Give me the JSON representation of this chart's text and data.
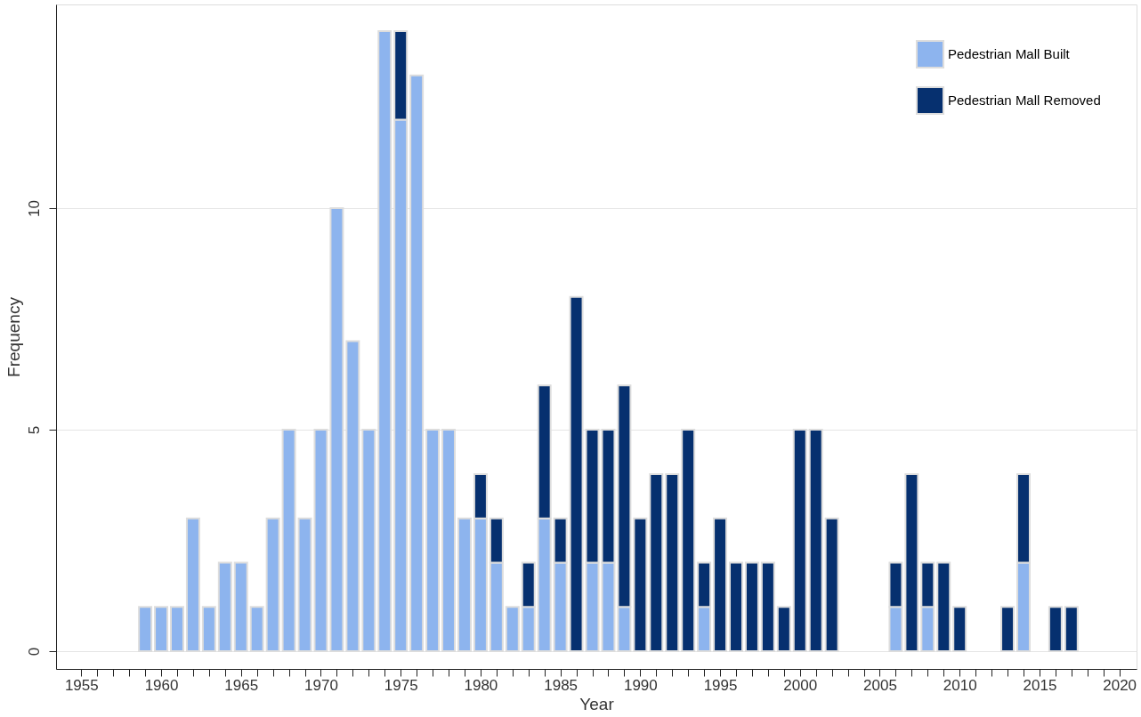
{
  "chart_data": {
    "type": "bar",
    "stacked": true,
    "xlabel": "Year",
    "ylabel": "Frequency",
    "x": [
      1959,
      1960,
      1961,
      1962,
      1963,
      1964,
      1965,
      1966,
      1967,
      1968,
      1969,
      1970,
      1971,
      1972,
      1973,
      1974,
      1975,
      1976,
      1977,
      1978,
      1979,
      1980,
      1981,
      1982,
      1983,
      1984,
      1985,
      1986,
      1987,
      1988,
      1989,
      1990,
      1991,
      1992,
      1993,
      1994,
      1995,
      1996,
      1997,
      1998,
      1999,
      2000,
      2001,
      2002,
      2006,
      2007,
      2008,
      2009,
      2010,
      2013,
      2014,
      2016,
      2017
    ],
    "series": [
      {
        "name": "Pedestrian Mall Built",
        "color": "#8db4ee",
        "values": [
          1,
          1,
          1,
          3,
          1,
          2,
          2,
          1,
          3,
          5,
          3,
          5,
          10,
          7,
          5,
          14,
          12,
          13,
          5,
          5,
          3,
          3,
          2,
          1,
          1,
          3,
          2,
          null,
          2,
          2,
          1,
          null,
          null,
          null,
          null,
          1,
          null,
          null,
          null,
          null,
          null,
          null,
          null,
          null,
          1,
          null,
          1,
          null,
          null,
          null,
          2,
          null,
          null
        ]
      },
      {
        "name": "Pedestrian Mall Removed",
        "color": "#06306f",
        "values": [
          null,
          null,
          null,
          null,
          null,
          null,
          null,
          null,
          null,
          null,
          null,
          null,
          null,
          null,
          null,
          null,
          2,
          null,
          null,
          null,
          null,
          1,
          1,
          null,
          1,
          3,
          1,
          8,
          3,
          3,
          5,
          3,
          4,
          4,
          5,
          1,
          3,
          2,
          2,
          2,
          1,
          5,
          5,
          3,
          1,
          4,
          1,
          2,
          1,
          1,
          2,
          1,
          1
        ]
      }
    ],
    "xlim": [
      1953.7,
      2020.8
    ],
    "xticks": [
      1955,
      {
        "value": 1956,
        "label": null
      },
      {
        "value": 1957,
        "label": null
      },
      {
        "value": 1958,
        "label": null
      },
      {
        "value": 1959,
        "label": null
      },
      1960,
      {
        "value": 1961,
        "label": null
      },
      {
        "value": 1962,
        "label": null
      },
      {
        "value": 1963,
        "label": null
      },
      {
        "value": 1964,
        "label": null
      },
      1965,
      {
        "value": 1966,
        "label": null
      },
      {
        "value": 1967,
        "label": null
      },
      {
        "value": 1968,
        "label": null
      },
      {
        "value": 1969,
        "label": null
      },
      1970,
      {
        "value": 1971,
        "label": null
      },
      {
        "value": 1972,
        "label": null
      },
      {
        "value": 1973,
        "label": null
      },
      {
        "value": 1974,
        "label": null
      },
      1975,
      {
        "value": 1976,
        "label": null
      },
      {
        "value": 1977,
        "label": null
      },
      {
        "value": 1978,
        "label": null
      },
      {
        "value": 1979,
        "label": null
      },
      1980,
      {
        "value": 1981,
        "label": null
      },
      {
        "value": 1982,
        "label": null
      },
      {
        "value": 1983,
        "label": null
      },
      {
        "value": 1984,
        "label": null
      },
      1985,
      {
        "value": 1986,
        "label": null
      },
      {
        "value": 1987,
        "label": null
      },
      {
        "value": 1988,
        "label": null
      },
      {
        "value": 1989,
        "label": null
      },
      1990,
      {
        "value": 1991,
        "label": null
      },
      {
        "value": 1992,
        "label": null
      },
      {
        "value": 1993,
        "label": null
      },
      {
        "value": 1994,
        "label": null
      },
      1995,
      {
        "value": 1996,
        "label": null
      },
      {
        "value": 1997,
        "label": null
      },
      {
        "value": 1998,
        "label": null
      },
      {
        "value": 1999,
        "label": null
      },
      2000,
      {
        "value": 2001,
        "label": null
      },
      {
        "value": 2002,
        "label": null
      },
      {
        "value": 2003,
        "label": null
      },
      {
        "value": 2004,
        "label": null
      },
      2005,
      {
        "value": 2006,
        "label": null
      },
      {
        "value": 2007,
        "label": null
      },
      {
        "value": 2008,
        "label": null
      },
      {
        "value": 2009,
        "label": null
      },
      2010,
      {
        "value": 2011,
        "label": null
      },
      {
        "value": 2012,
        "label": null
      },
      {
        "value": 2013,
        "label": null
      },
      {
        "value": 2014,
        "label": null
      },
      2015,
      {
        "value": 2016,
        "label": null
      },
      {
        "value": 2017,
        "label": null
      },
      {
        "value": 2018,
        "label": null
      },
      {
        "value": 2019,
        "label": null
      },
      2020
    ],
    "ylim": [
      -0.4,
      14.6
    ],
    "yticks": [
      0,
      5,
      10
    ],
    "grid": "y",
    "legend": "top right"
  }
}
